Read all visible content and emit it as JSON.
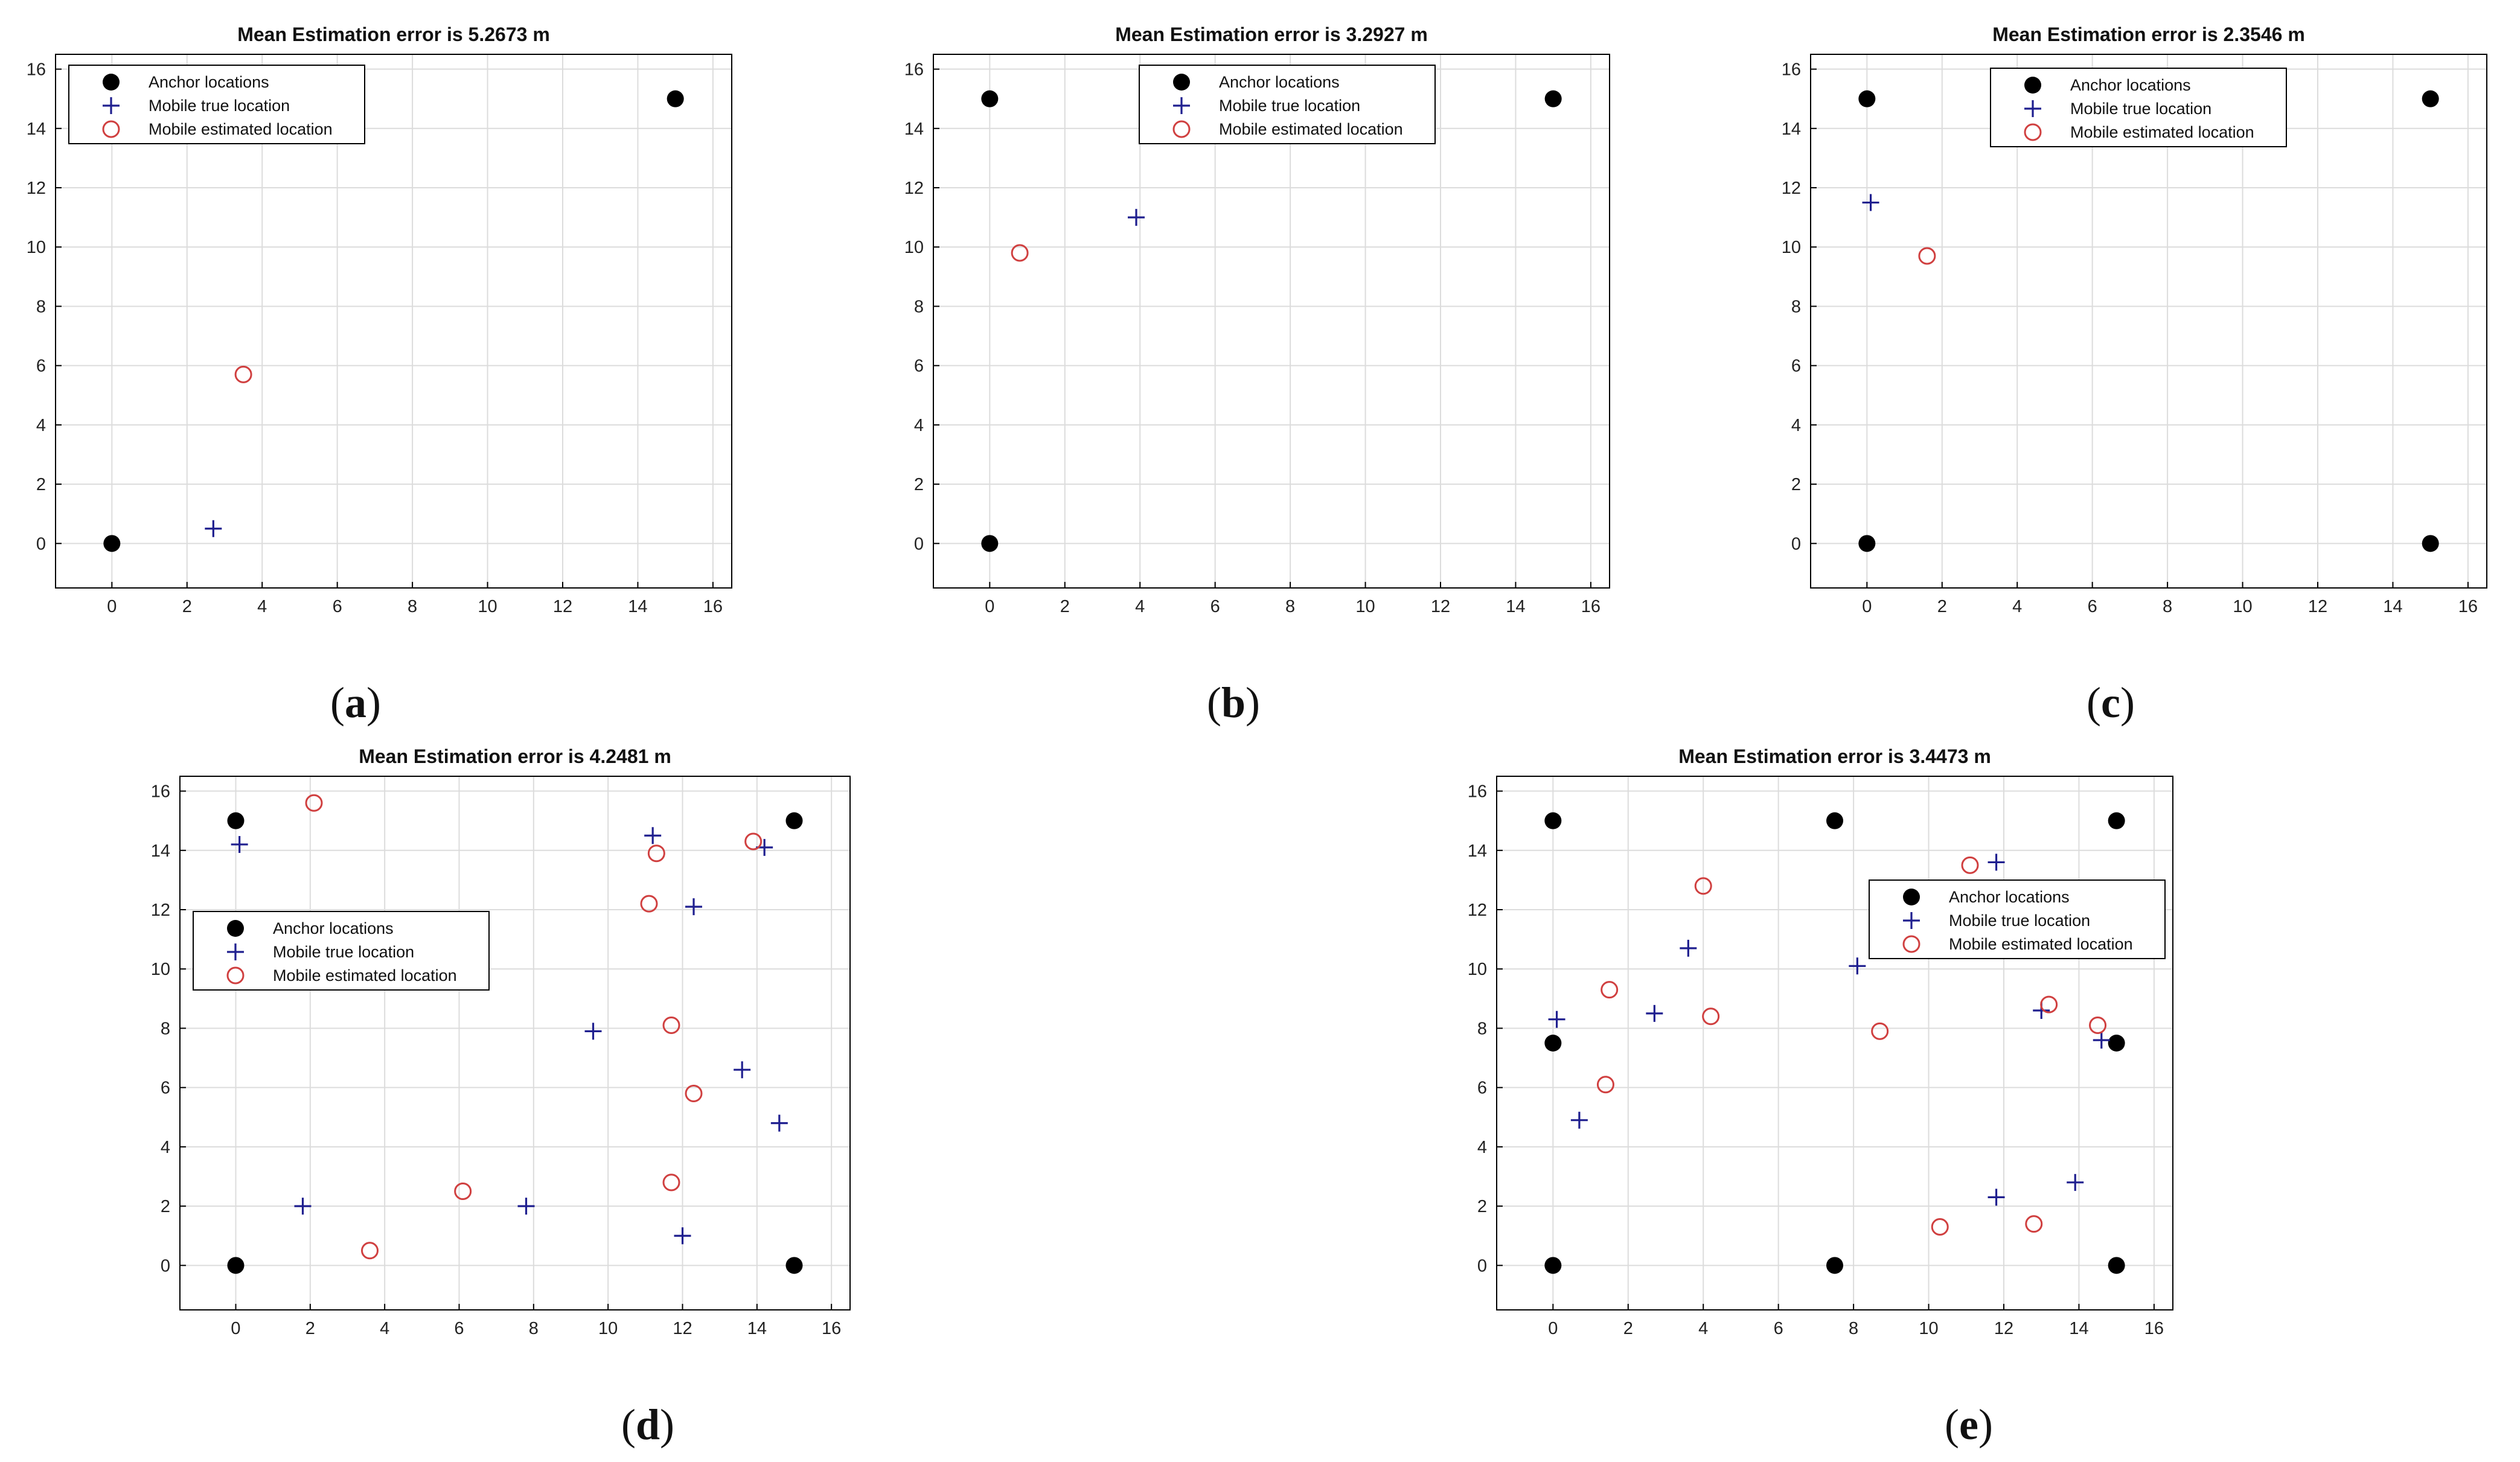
{
  "legend_labels": [
    "Anchor locations",
    "Mobile true location",
    "Mobile estimated location"
  ],
  "colors": {
    "anchor": "#000000",
    "true": "#1f1f8f",
    "estimated": "#d04040",
    "grid": "#dcdcdc",
    "axes": "#000000"
  },
  "chart_data": [
    {
      "id": "a",
      "type": "scatter",
      "title": "Mean Estimation error is 5.2673 m",
      "caption": "a",
      "xlim": [
        -1.5,
        16.5
      ],
      "ylim": [
        -1.5,
        16.5
      ],
      "xticks": [
        0,
        2,
        4,
        6,
        8,
        10,
        12,
        14,
        16
      ],
      "yticks": [
        0,
        2,
        4,
        6,
        8,
        10,
        12,
        14,
        16
      ],
      "grid": true,
      "legend_position": "top-left",
      "series": [
        {
          "name": "Anchor locations",
          "marker": "filled-circle",
          "points": [
            [
              0,
              0
            ],
            [
              15,
              15
            ]
          ]
        },
        {
          "name": "Mobile true location",
          "marker": "plus",
          "points": [
            [
              2.7,
              0.5
            ]
          ]
        },
        {
          "name": "Mobile estimated location",
          "marker": "open-circle",
          "points": [
            [
              3.5,
              5.7
            ]
          ]
        }
      ]
    },
    {
      "id": "b",
      "type": "scatter",
      "title": "Mean Estimation error is 3.2927 m",
      "caption": "b",
      "xlim": [
        -1.5,
        16.5
      ],
      "ylim": [
        -1.5,
        16.5
      ],
      "xticks": [
        0,
        2,
        4,
        6,
        8,
        10,
        12,
        14,
        16
      ],
      "yticks": [
        0,
        2,
        4,
        6,
        8,
        10,
        12,
        14,
        16
      ],
      "grid": true,
      "legend_position": "top-center",
      "series": [
        {
          "name": "Anchor locations",
          "marker": "filled-circle",
          "points": [
            [
              0,
              0
            ],
            [
              0,
              15
            ],
            [
              15,
              15
            ]
          ]
        },
        {
          "name": "Mobile true location",
          "marker": "plus",
          "points": [
            [
              3.9,
              11.0
            ]
          ]
        },
        {
          "name": "Mobile estimated location",
          "marker": "open-circle",
          "points": [
            [
              0.8,
              9.8
            ]
          ]
        }
      ]
    },
    {
      "id": "c",
      "type": "scatter",
      "title": "Mean Estimation error is 2.3546 m",
      "caption": "c",
      "xlim": [
        -1.5,
        16.5
      ],
      "ylim": [
        -1.5,
        16.5
      ],
      "xticks": [
        0,
        2,
        4,
        6,
        8,
        10,
        12,
        14,
        16
      ],
      "yticks": [
        0,
        2,
        4,
        6,
        8,
        10,
        12,
        14,
        16
      ],
      "grid": true,
      "legend_position": "top-center",
      "series": [
        {
          "name": "Anchor locations",
          "marker": "filled-circle",
          "points": [
            [
              0,
              0
            ],
            [
              0,
              15
            ],
            [
              15,
              15
            ],
            [
              15,
              0
            ]
          ]
        },
        {
          "name": "Mobile true location",
          "marker": "plus",
          "points": [
            [
              0.1,
              11.5
            ]
          ]
        },
        {
          "name": "Mobile estimated location",
          "marker": "open-circle",
          "points": [
            [
              1.6,
              9.7
            ]
          ]
        }
      ]
    },
    {
      "id": "d",
      "type": "scatter",
      "title": "Mean Estimation error is 4.2481 m",
      "caption": "d",
      "xlim": [
        -1.5,
        16.5
      ],
      "ylim": [
        -1.5,
        16.5
      ],
      "xticks": [
        0,
        2,
        4,
        6,
        8,
        10,
        12,
        14,
        16
      ],
      "yticks": [
        0,
        2,
        4,
        6,
        8,
        10,
        12,
        14,
        16
      ],
      "grid": true,
      "legend_position": "center-left",
      "series": [
        {
          "name": "Anchor locations",
          "marker": "filled-circle",
          "points": [
            [
              0,
              0
            ],
            [
              0,
              15
            ],
            [
              15,
              15
            ],
            [
              15,
              0
            ]
          ]
        },
        {
          "name": "Mobile true location",
          "marker": "plus",
          "points": [
            [
              0.1,
              14.2
            ],
            [
              11.2,
              14.5
            ],
            [
              14.2,
              14.1
            ],
            [
              12.3,
              12.1
            ],
            [
              9.6,
              7.9
            ],
            [
              13.6,
              6.6
            ],
            [
              14.6,
              4.8
            ],
            [
              1.8,
              2.0
            ],
            [
              7.8,
              2.0
            ],
            [
              12.0,
              1.0
            ]
          ]
        },
        {
          "name": "Mobile estimated location",
          "marker": "open-circle",
          "points": [
            [
              2.1,
              15.6
            ],
            [
              11.3,
              13.9
            ],
            [
              13.9,
              14.3
            ],
            [
              11.1,
              12.2
            ],
            [
              11.7,
              8.1
            ],
            [
              12.3,
              5.8
            ],
            [
              6.1,
              2.5
            ],
            [
              11.7,
              2.8
            ],
            [
              3.6,
              0.5
            ]
          ]
        }
      ]
    },
    {
      "id": "e",
      "type": "scatter",
      "title": "Mean Estimation error is 3.4473 m",
      "caption": "e",
      "xlim": [
        -1.5,
        16.5
      ],
      "ylim": [
        -1.5,
        16.5
      ],
      "xticks": [
        0,
        2,
        4,
        6,
        8,
        10,
        12,
        14,
        16
      ],
      "yticks": [
        0,
        2,
        4,
        6,
        8,
        10,
        12,
        14,
        16
      ],
      "grid": true,
      "legend_position": "center-right",
      "series": [
        {
          "name": "Anchor locations",
          "marker": "filled-circle",
          "points": [
            [
              0,
              0
            ],
            [
              0,
              7.5
            ],
            [
              0,
              15
            ],
            [
              7.5,
              15
            ],
            [
              15,
              15
            ],
            [
              15,
              7.5
            ],
            [
              15,
              0
            ],
            [
              7.5,
              0
            ]
          ]
        },
        {
          "name": "Mobile true location",
          "marker": "plus",
          "points": [
            [
              0.1,
              8.3
            ],
            [
              0.7,
              4.9
            ],
            [
              2.7,
              8.5
            ],
            [
              3.6,
              10.7
            ],
            [
              8.1,
              10.1
            ],
            [
              11.8,
              13.6
            ],
            [
              13.0,
              8.6
            ],
            [
              14.6,
              7.6
            ],
            [
              11.8,
              2.3
            ],
            [
              13.9,
              2.8
            ]
          ]
        },
        {
          "name": "Mobile estimated location",
          "marker": "open-circle",
          "points": [
            [
              1.5,
              9.3
            ],
            [
              1.4,
              6.1
            ],
            [
              4.0,
              12.8
            ],
            [
              4.2,
              8.4
            ],
            [
              11.1,
              13.5
            ],
            [
              8.7,
              7.9
            ],
            [
              13.2,
              8.8
            ],
            [
              14.5,
              8.1
            ],
            [
              10.3,
              1.3
            ],
            [
              12.8,
              1.4
            ]
          ]
        }
      ]
    }
  ]
}
